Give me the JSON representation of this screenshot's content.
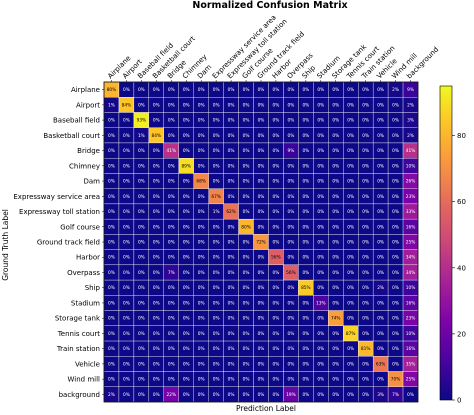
{
  "chart_data": {
    "type": "heatmap",
    "title": "Normalized Confusion Matrix",
    "xlabel": "Prediction Label",
    "ylabel": "Ground Truth Label",
    "categories": [
      "Airplane",
      "Airport",
      "Baseball field",
      "Basketball court",
      "Bridge",
      "Chimney",
      "Dam",
      "Expressway service area",
      "Expressway toll station",
      "Golf course",
      "Ground track field",
      "Harbor",
      "Overpass",
      "Ship",
      "Stadium",
      "Storage tank",
      "Tennis court",
      "Train station",
      "Vehicle",
      "Wind mill",
      "background"
    ],
    "value_suffix": "%",
    "colorbar": {
      "min": 0,
      "max": 95,
      "ticks": [
        0,
        20,
        40,
        60,
        80
      ]
    },
    "matrix": [
      [
        80,
        0,
        0,
        0,
        0,
        0,
        0,
        0,
        0,
        0,
        0,
        0,
        0,
        0,
        0,
        0,
        0,
        0,
        0,
        2,
        9
      ],
      [
        1,
        84,
        0,
        0,
        0,
        0,
        0,
        0,
        0,
        0,
        0,
        0,
        0,
        0,
        0,
        0,
        0,
        0,
        0,
        0,
        2
      ],
      [
        0,
        0,
        93,
        0,
        0,
        0,
        0,
        0,
        0,
        0,
        0,
        0,
        0,
        0,
        0,
        0,
        0,
        0,
        0,
        0,
        3
      ],
      [
        0,
        0,
        1,
        84,
        0,
        0,
        0,
        0,
        0,
        0,
        0,
        0,
        0,
        0,
        0,
        0,
        0,
        0,
        0,
        0,
        2
      ],
      [
        0,
        0,
        0,
        0,
        41,
        0,
        0,
        0,
        0,
        0,
        0,
        0,
        9,
        0,
        0,
        0,
        0,
        0,
        0,
        0,
        41
      ],
      [
        0,
        0,
        0,
        0,
        0,
        89,
        0,
        0,
        0,
        0,
        0,
        0,
        0,
        0,
        0,
        0,
        0,
        0,
        0,
        0,
        10
      ],
      [
        0,
        0,
        0,
        0,
        0,
        0,
        68,
        0,
        0,
        0,
        0,
        0,
        0,
        0,
        0,
        0,
        0,
        0,
        0,
        0,
        26
      ],
      [
        0,
        0,
        0,
        0,
        0,
        0,
        0,
        67,
        0,
        0,
        0,
        0,
        0,
        0,
        0,
        0,
        0,
        0,
        0,
        0,
        23
      ],
      [
        0,
        0,
        0,
        0,
        0,
        0,
        0,
        1,
        62,
        0,
        0,
        0,
        0,
        0,
        0,
        0,
        0,
        0,
        0,
        0,
        33
      ],
      [
        0,
        0,
        0,
        0,
        0,
        0,
        0,
        0,
        0,
        80,
        0,
        0,
        0,
        0,
        0,
        0,
        0,
        0,
        0,
        0,
        16
      ],
      [
        0,
        0,
        0,
        0,
        0,
        0,
        0,
        0,
        0,
        0,
        72,
        0,
        0,
        0,
        0,
        0,
        0,
        0,
        0,
        0,
        25
      ],
      [
        0,
        0,
        0,
        0,
        0,
        0,
        0,
        0,
        0,
        0,
        0,
        56,
        0,
        0,
        0,
        0,
        0,
        0,
        0,
        0,
        34
      ],
      [
        0,
        0,
        0,
        0,
        7,
        0,
        0,
        0,
        0,
        0,
        0,
        0,
        56,
        0,
        0,
        0,
        0,
        0,
        0,
        0,
        34
      ],
      [
        0,
        0,
        0,
        0,
        0,
        0,
        0,
        0,
        0,
        0,
        0,
        0,
        0,
        85,
        0,
        0,
        0,
        0,
        2,
        0,
        10
      ],
      [
        0,
        0,
        0,
        0,
        0,
        0,
        0,
        0,
        0,
        0,
        0,
        0,
        0,
        0,
        13,
        0,
        0,
        0,
        0,
        0,
        16
      ],
      [
        0,
        0,
        0,
        0,
        0,
        0,
        0,
        0,
        0,
        0,
        0,
        0,
        0,
        0,
        0,
        74,
        0,
        0,
        0,
        0,
        23
      ],
      [
        0,
        0,
        0,
        0,
        0,
        0,
        0,
        0,
        0,
        0,
        0,
        0,
        0,
        0,
        0,
        0,
        87,
        0,
        0,
        0,
        10
      ],
      [
        0,
        0,
        0,
        0,
        0,
        0,
        0,
        0,
        0,
        0,
        0,
        0,
        0,
        0,
        0,
        0,
        0,
        81,
        0,
        0,
        16
      ],
      [
        0,
        0,
        0,
        0,
        0,
        0,
        0,
        0,
        0,
        0,
        0,
        0,
        0,
        0,
        0,
        0,
        0,
        0,
        63,
        0,
        35
      ],
      [
        0,
        0,
        0,
        0,
        0,
        0,
        0,
        0,
        0,
        0,
        0,
        0,
        0,
        0,
        0,
        0,
        0,
        0,
        0,
        70,
        25
      ],
      [
        2,
        0,
        0,
        0,
        22,
        0,
        0,
        0,
        0,
        0,
        0,
        0,
        19,
        0,
        0,
        0,
        0,
        0,
        3,
        7,
        0
      ]
    ]
  }
}
